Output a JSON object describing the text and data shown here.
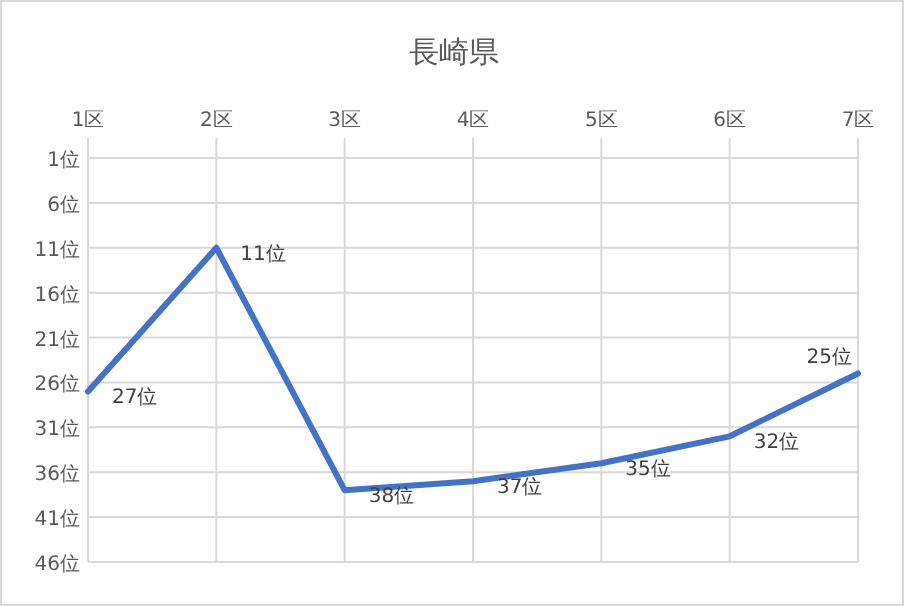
{
  "chart_data": {
    "type": "line",
    "title": "長崎県",
    "categories": [
      "1区",
      "2区",
      "3区",
      "4区",
      "5区",
      "6区",
      "7区"
    ],
    "series": [
      {
        "color": "#4472c4",
        "values": [
          27,
          11,
          38,
          37,
          35,
          32,
          25
        ],
        "value_labels": [
          "27位",
          "11位",
          "38位",
          "37位",
          "35位",
          "32位",
          "25位"
        ]
      }
    ],
    "ylim": [
      46,
      1
    ],
    "yticks": [
      {
        "value": 1,
        "label": "1位"
      },
      {
        "value": 6,
        "label": "6位"
      },
      {
        "value": 11,
        "label": "11位"
      },
      {
        "value": 16,
        "label": "16位"
      },
      {
        "value": 21,
        "label": "21位"
      },
      {
        "value": 26,
        "label": "26位"
      },
      {
        "value": 31,
        "label": "31位"
      },
      {
        "value": 36,
        "label": "36位"
      },
      {
        "value": 41,
        "label": "41位"
      },
      {
        "value": 46,
        "label": "46位"
      }
    ],
    "grid": true,
    "marker": "none",
    "line_style": "solid"
  }
}
